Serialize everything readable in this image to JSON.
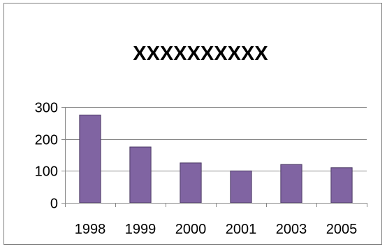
{
  "chart_data": {
    "type": "bar",
    "title": "XXXXXXXXXX",
    "xlabel": "",
    "ylabel": "",
    "categories": [
      "1998",
      "1999",
      "2000",
      "2001",
      "2003",
      "2005"
    ],
    "values": [
      275,
      175,
      125,
      100,
      120,
      110
    ],
    "ylim": [
      0,
      300
    ],
    "yticks": [
      0,
      100,
      200,
      300
    ],
    "grid": true,
    "legend": "none",
    "colors": {
      "bar_fill": "#8064A2",
      "bar_stroke": "#4B3A64",
      "grid": "#888888",
      "axis": "#888888"
    }
  }
}
